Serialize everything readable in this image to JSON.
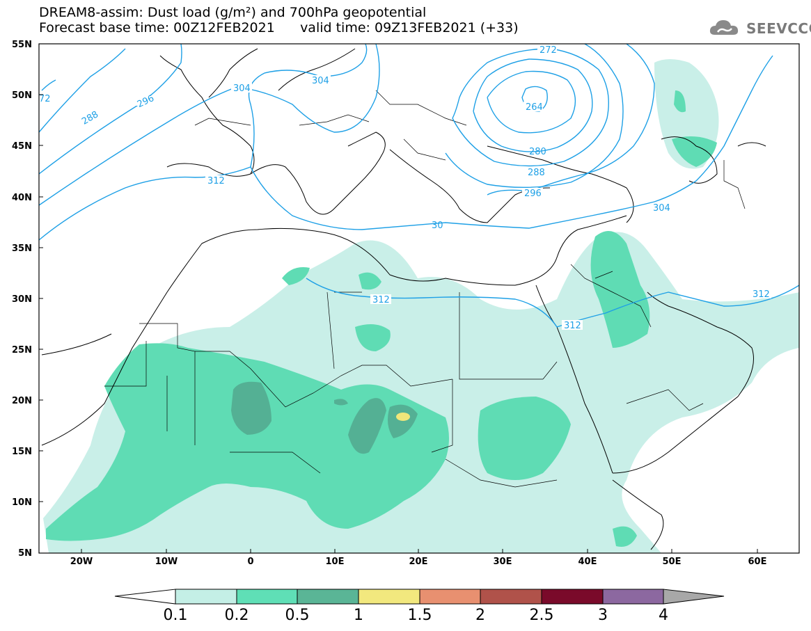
{
  "header": {
    "title_line1": "DREAM8-assim: Dust load (g/m²) and 700hPa geopotential",
    "title_line2": "Forecast base time: 00Z12FEB2021      valid time: 09Z13FEB2021 (+33)",
    "logo_text": "SEEVCCC",
    "logo_icon": "cloud-icon"
  },
  "map": {
    "lat_labels": [
      "55N",
      "50N",
      "45N",
      "40N",
      "35N",
      "30N",
      "25N",
      "20N",
      "15N",
      "10N",
      "5N"
    ],
    "lon_labels": [
      "20W",
      "10W",
      "0",
      "10E",
      "20E",
      "30E",
      "40E",
      "50E",
      "60E"
    ],
    "contour_labels": [
      "272",
      "264",
      "304",
      "304",
      "296",
      "288",
      "280",
      "72",
      "312",
      "288",
      "296",
      "304",
      "30",
      "312",
      "312",
      "312"
    ],
    "colors": {
      "contour": "#1ea0e6",
      "coast": "#000000",
      "dust_0_1": "#c9efe8",
      "dust_0_2": "#5fdcb4",
      "dust_0_5": "#54b094",
      "dust_1": "#f0e67a"
    }
  },
  "colorbar": {
    "labels": [
      "0.1",
      "0.2",
      "0.5",
      "1",
      "1.5",
      "2",
      "2.5",
      "3",
      "4"
    ],
    "colors": [
      "#ffffff",
      "#c4efe6",
      "#5fdfb6",
      "#5ab596",
      "#f2e87e",
      "#e89070",
      "#b0524a",
      "#7a0a2a",
      "#8c68a0",
      "#a8a8a8"
    ]
  }
}
